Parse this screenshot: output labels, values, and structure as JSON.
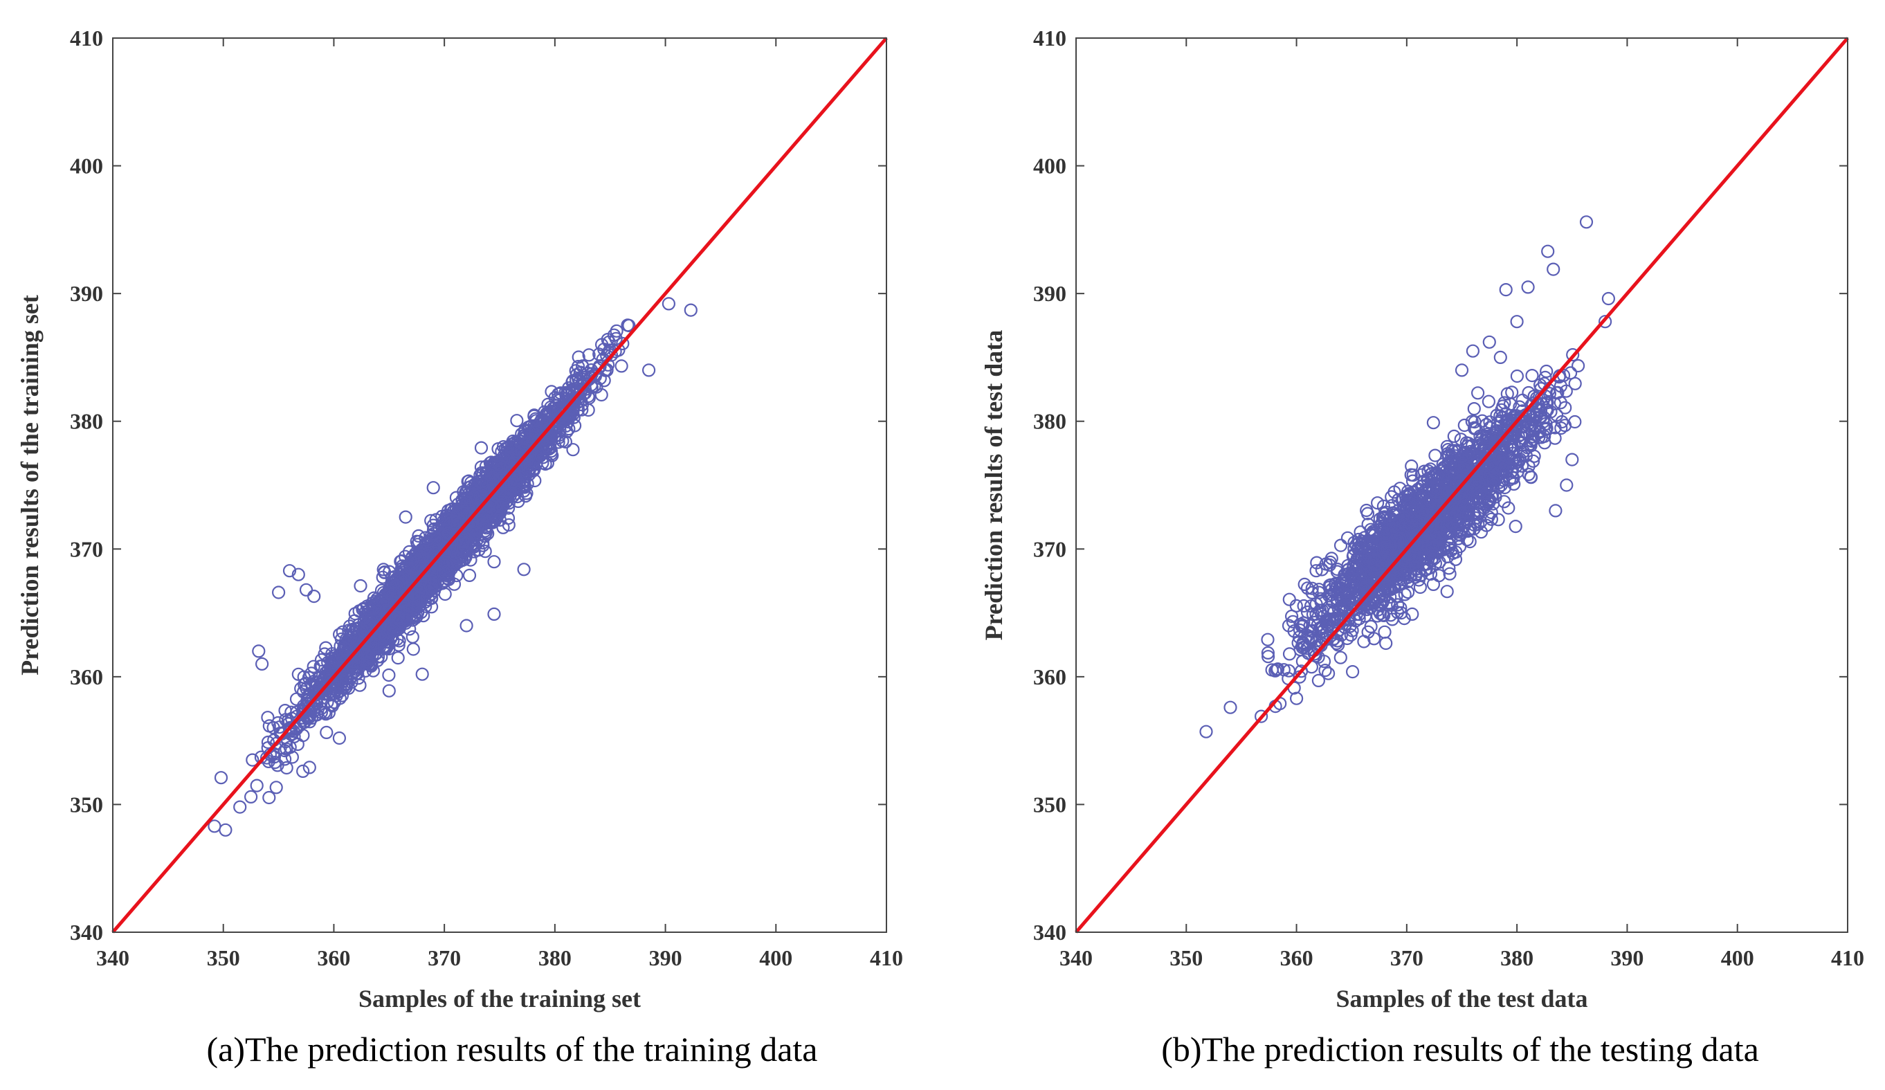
{
  "figure": {
    "marker_color": "#5b5fb5",
    "line_color": "#e8121c"
  },
  "chart_data": [
    {
      "type": "scatter",
      "id": "a",
      "caption": "(a)The prediction results of the training data",
      "xlabel": "Samples of the training set",
      "ylabel": "Prediction results of the training set",
      "xlim": [
        340,
        410
      ],
      "ylim": [
        340,
        410
      ],
      "xticks": [
        "340",
        "350",
        "360",
        "370",
        "380",
        "390",
        "400",
        "410"
      ],
      "yticks": [
        "340",
        "350",
        "360",
        "370",
        "380",
        "390",
        "400",
        "410"
      ],
      "reference_line": {
        "from": [
          340,
          340
        ],
        "to": [
          410,
          410
        ]
      },
      "series": [
        {
          "name": "training",
          "marker": "circle-open",
          "count": 3000,
          "x_range": [
            351,
            389
          ],
          "linear_fit": {
            "slope": 1.0,
            "intercept": 0.0
          },
          "residual_sd": 1.2,
          "outliers": [
            {
              "x": 349.2,
              "y": 348.3
            },
            {
              "x": 350.2,
              "y": 348.0
            },
            {
              "x": 349.8,
              "y": 352.1
            },
            {
              "x": 351.5,
              "y": 349.8
            },
            {
              "x": 352.5,
              "y": 350.6
            },
            {
              "x": 355.0,
              "y": 366.6
            },
            {
              "x": 356.0,
              "y": 368.3
            },
            {
              "x": 356.8,
              "y": 368.0
            },
            {
              "x": 357.5,
              "y": 366.8
            },
            {
              "x": 358.2,
              "y": 366.3
            },
            {
              "x": 353.2,
              "y": 362.0
            },
            {
              "x": 353.5,
              "y": 361.0
            },
            {
              "x": 357.8,
              "y": 352.9
            },
            {
              "x": 357.2,
              "y": 352.6
            },
            {
              "x": 360.5,
              "y": 355.2
            },
            {
              "x": 365.0,
              "y": 358.9
            },
            {
              "x": 368.0,
              "y": 360.2
            },
            {
              "x": 372.0,
              "y": 364.0
            },
            {
              "x": 374.5,
              "y": 364.9
            },
            {
              "x": 377.2,
              "y": 368.4
            },
            {
              "x": 374.5,
              "y": 369.0
            },
            {
              "x": 390.3,
              "y": 389.2
            },
            {
              "x": 392.3,
              "y": 388.7
            },
            {
              "x": 388.5,
              "y": 384.0
            },
            {
              "x": 369.0,
              "y": 374.8
            },
            {
              "x": 366.5,
              "y": 372.5
            }
          ]
        }
      ]
    },
    {
      "type": "scatter",
      "id": "b",
      "caption": "(b)The prediction results of the testing data",
      "xlabel": "Samples of the test data",
      "ylabel": "Prediction results of test data",
      "xlim": [
        340,
        410
      ],
      "ylim": [
        340,
        410
      ],
      "xticks": [
        "340",
        "350",
        "360",
        "370",
        "380",
        "390",
        "400",
        "410"
      ],
      "yticks": [
        "340",
        "350",
        "360",
        "370",
        "380",
        "390",
        "400",
        "410"
      ],
      "reference_line": {
        "from": [
          340,
          340
        ],
        "to": [
          410,
          410
        ]
      },
      "series": [
        {
          "name": "test",
          "marker": "circle-open",
          "count": 1900,
          "x_range": [
            356,
            388
          ],
          "linear_fit": {
            "slope": 0.78,
            "intercept": 82.0
          },
          "residual_sd": 1.9,
          "outliers": [
            {
              "x": 351.8,
              "y": 355.7
            },
            {
              "x": 354.0,
              "y": 357.6
            },
            {
              "x": 356.8,
              "y": 356.9
            },
            {
              "x": 358.5,
              "y": 357.9
            },
            {
              "x": 360.0,
              "y": 358.3
            },
            {
              "x": 362.0,
              "y": 359.7
            },
            {
              "x": 364.0,
              "y": 361.5
            },
            {
              "x": 366.5,
              "y": 363.5
            },
            {
              "x": 368.0,
              "y": 363.5
            },
            {
              "x": 369.5,
              "y": 365.0
            },
            {
              "x": 370.5,
              "y": 364.9
            },
            {
              "x": 379.0,
              "y": 390.3
            },
            {
              "x": 381.0,
              "y": 390.5
            },
            {
              "x": 382.8,
              "y": 393.3
            },
            {
              "x": 383.3,
              "y": 391.9
            },
            {
              "x": 386.3,
              "y": 395.6
            },
            {
              "x": 380.0,
              "y": 387.8
            },
            {
              "x": 388.3,
              "y": 389.6
            },
            {
              "x": 388.0,
              "y": 387.8
            },
            {
              "x": 376.0,
              "y": 385.5
            },
            {
              "x": 377.5,
              "y": 386.2
            },
            {
              "x": 378.5,
              "y": 385.0
            },
            {
              "x": 375.0,
              "y": 384.0
            },
            {
              "x": 384.5,
              "y": 375.0
            },
            {
              "x": 383.5,
              "y": 373.0
            },
            {
              "x": 385.0,
              "y": 377.0
            }
          ]
        }
      ]
    }
  ]
}
